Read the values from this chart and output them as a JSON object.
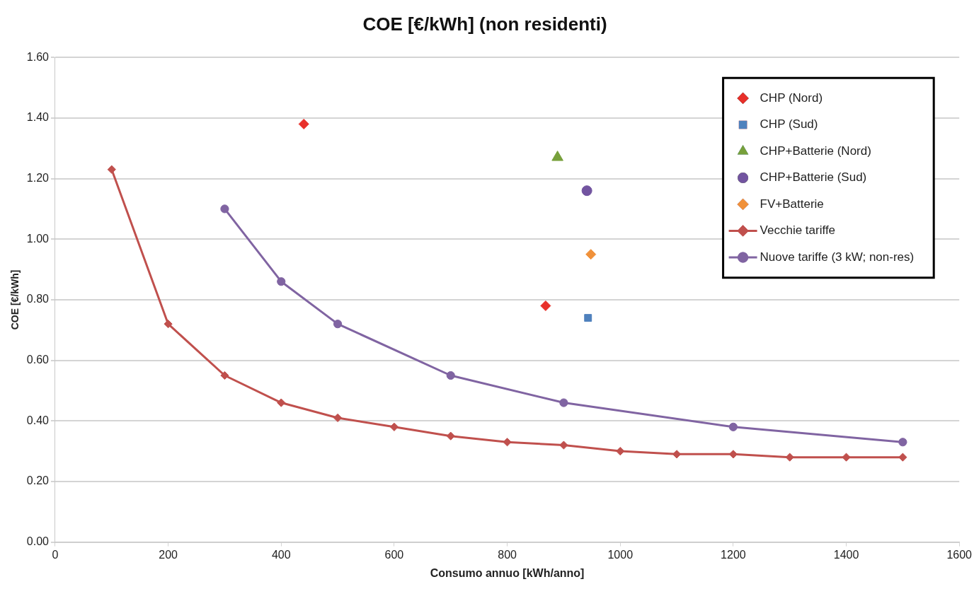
{
  "chart_data": {
    "type": "scatter",
    "title": "COE [€/kWh] (non residenti)",
    "xlabel": "Consumo annuo [kWh/anno]",
    "ylabel": "COE [€/kWh]",
    "xlim": [
      0,
      1600
    ],
    "xticks": [
      0,
      200,
      400,
      600,
      800,
      1000,
      1200,
      1400,
      1600
    ],
    "ylim": [
      0,
      1.6
    ],
    "yticks": [
      {
        "value": 0,
        "label": "0.00"
      },
      {
        "value": 0.2,
        "label": "0.20"
      },
      {
        "value": 0.4,
        "label": "0.40"
      },
      {
        "value": 0.6,
        "label": "0.60"
      },
      {
        "value": 0.8,
        "label": "0.80"
      },
      {
        "value": 1.0,
        "label": "1.00"
      },
      {
        "value": 1.2,
        "label": "1.20"
      },
      {
        "value": 1.4,
        "label": "1.40"
      },
      {
        "value": 1.6,
        "label": "1.60"
      }
    ],
    "grid": "y",
    "legend": "top right",
    "series": [
      {
        "name": "CHP (Nord)",
        "type": "scatter",
        "marker": "diamond",
        "color": "#e8302a",
        "x": [
          440,
          868
        ],
        "values": [
          1.38,
          0.78
        ]
      },
      {
        "name": "CHP (Sud)",
        "type": "scatter",
        "marker": "square",
        "color": "#4f81bd",
        "x": [
          943
        ],
        "values": [
          0.74
        ]
      },
      {
        "name": "CHP+Batterie (Nord)",
        "type": "scatter",
        "marker": "triangle",
        "color": "#77a03b",
        "x": [
          889
        ],
        "values": [
          1.27
        ]
      },
      {
        "name": "CHP+Batterie (Sud)",
        "type": "scatter",
        "marker": "circle",
        "color": "#7254a0",
        "x": [
          941
        ],
        "values": [
          1.16
        ]
      },
      {
        "name": "FV+Batterie",
        "type": "scatter",
        "marker": "diamond",
        "color": "#f0913a",
        "x": [
          948
        ],
        "values": [
          0.95
        ]
      },
      {
        "name": "Vecchie tariffe",
        "type": "line",
        "marker": "diamond",
        "color": "#c0504d",
        "x": [
          100,
          200,
          300,
          400,
          500,
          600,
          700,
          800,
          900,
          1000,
          1100,
          1200,
          1300,
          1400,
          1500
        ],
        "values": [
          1.23,
          0.72,
          0.55,
          0.46,
          0.41,
          0.38,
          0.35,
          0.33,
          0.32,
          0.3,
          0.29,
          0.29,
          0.28,
          0.28,
          0.28
        ]
      },
      {
        "name": "Nuove tariffe (3 kW; non-res)",
        "type": "line",
        "marker": "circle",
        "color": "#8064a2",
        "x": [
          300,
          400,
          500,
          700,
          900,
          1200,
          1500
        ],
        "values": [
          1.1,
          0.86,
          0.72,
          0.55,
          0.46,
          0.38,
          0.33
        ]
      }
    ]
  }
}
